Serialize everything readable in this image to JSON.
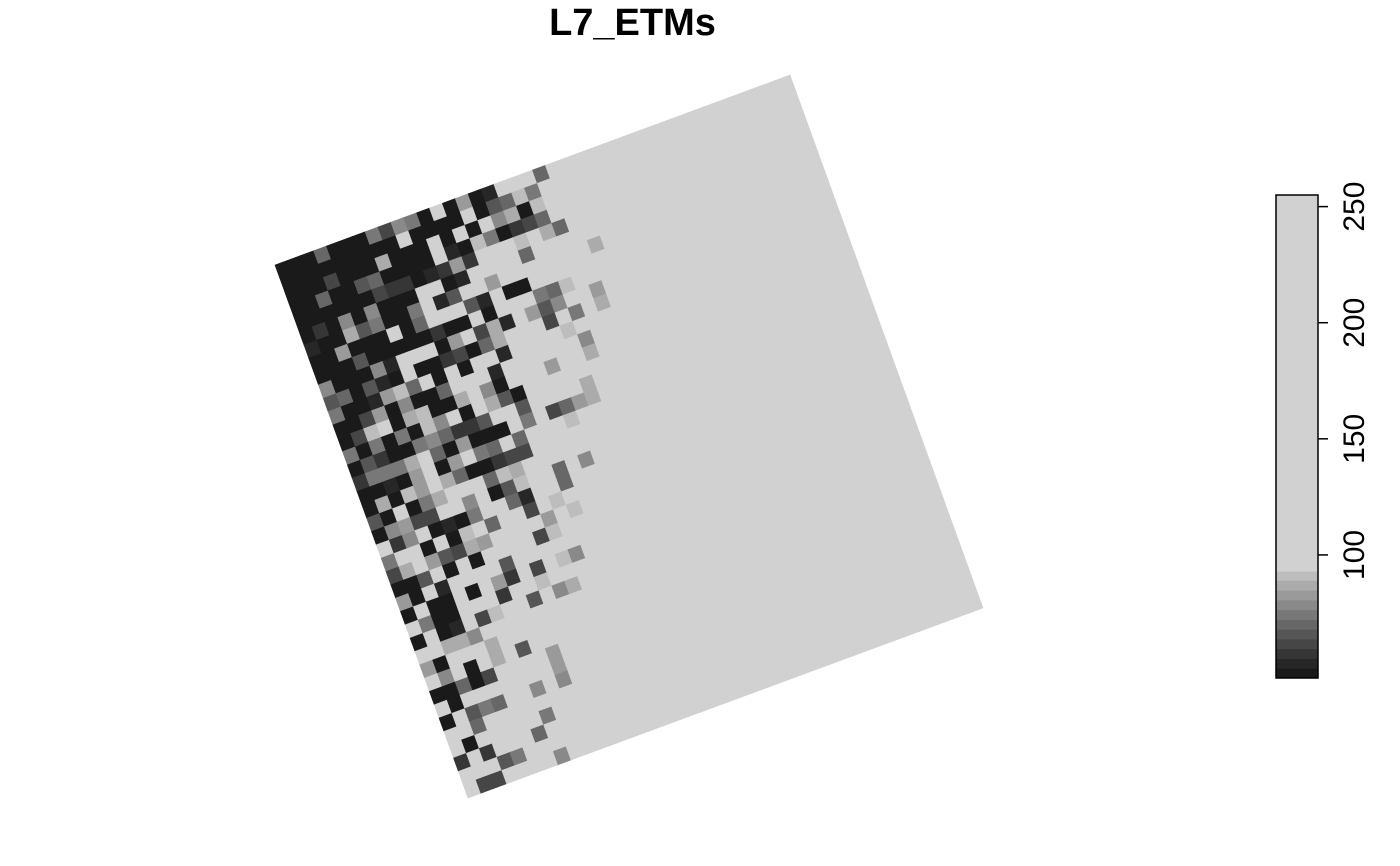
{
  "chart_data": {
    "type": "heatmap",
    "title": "L7_ETMs",
    "grid_rows": 40,
    "grid_cols": 40,
    "rotation_deg": -24,
    "value_range": [
      47,
      255
    ],
    "palette": "grey",
    "legend": {
      "position": "right",
      "ticks": [
        100,
        150,
        200,
        250
      ],
      "tick_labels": [
        "100",
        "150",
        "200",
        "250"
      ],
      "breaks": [
        47,
        51.2,
        55.4,
        59.6,
        63.8,
        68,
        72.2,
        76.4,
        80.6,
        84.8,
        89,
        93,
        255
      ],
      "colors": [
        "#1a1a1a",
        "#272727",
        "#363636",
        "#464646",
        "#565656",
        "#676767",
        "#787878",
        "#898989",
        "#9a9a9a",
        "#ababab",
        "#bdbdbd",
        "#d1d1d1",
        "#e6e6e6"
      ]
    },
    "spatial_pattern": "dark (low values) toward the upper-left corner of the rotated raster, light (high values ~ 230-255) toward the right edge"
  }
}
